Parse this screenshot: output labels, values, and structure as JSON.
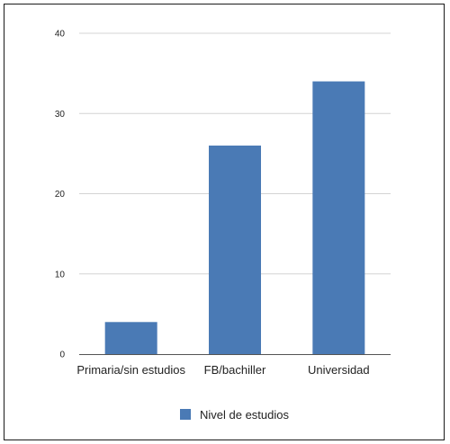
{
  "chart_data": {
    "type": "bar",
    "categories": [
      "Primaria/sin estudios",
      "FB/bachiller",
      "Universidad"
    ],
    "series": [
      {
        "name": "Nivel de estudios",
        "values": [
          4,
          26,
          34
        ],
        "color": "#4a7ab5"
      }
    ],
    "y_ticks": [
      "0",
      "10",
      "20",
      "30",
      "40"
    ],
    "ylim": [
      0,
      40
    ],
    "grid": true,
    "legend_position": "bottom",
    "gridline_color": "#d4d4d4",
    "axis_color": "#555555"
  }
}
